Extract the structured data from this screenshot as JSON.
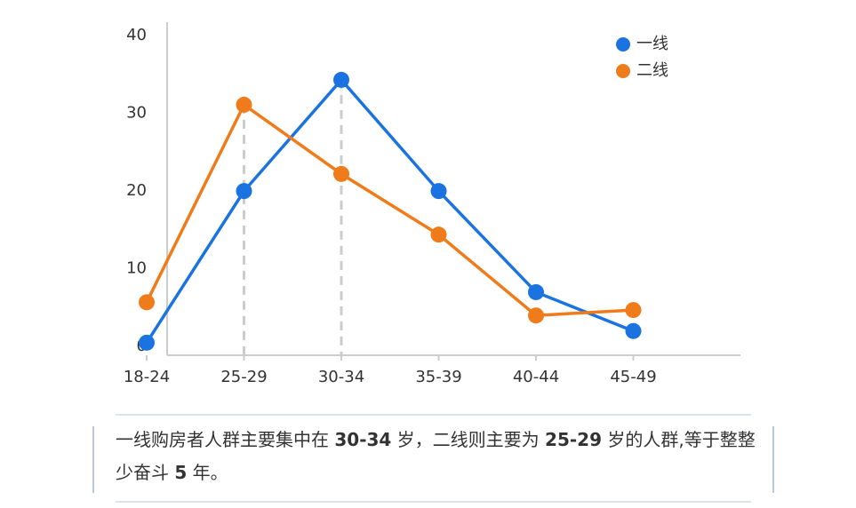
{
  "chart_data": {
    "type": "line",
    "categories": [
      "18-24",
      "25-29",
      "30-34",
      "35-39",
      "40-44",
      "45-49"
    ],
    "series": [
      {
        "name": "一线",
        "color": "#1a73e0",
        "values": [
          0.5,
          20,
          34.3,
          20,
          7,
          2
        ]
      },
      {
        "name": "二线",
        "color": "#f07b1a",
        "values": [
          5.7,
          31.1,
          22.2,
          14.4,
          4,
          4.7
        ]
      }
    ],
    "ylim": [
      -1,
      41
    ],
    "yticks": [
      0,
      10,
      20,
      30,
      40
    ],
    "legend": "upper right",
    "peak_guides": [
      {
        "series": 1,
        "index": 1
      },
      {
        "series": 0,
        "index": 2
      }
    ]
  },
  "caption": {
    "segments": [
      {
        "text": "一线购房者人群主要集中在 "
      },
      {
        "text": "30-34",
        "bold": true
      },
      {
        "text": " 岁，二线则主要为 "
      },
      {
        "text": "25-29",
        "bold": true
      },
      {
        "text": " 岁的人群,等于整整少奋斗 "
      },
      {
        "text": "5",
        "bold": true
      },
      {
        "text": " 年。"
      }
    ]
  }
}
